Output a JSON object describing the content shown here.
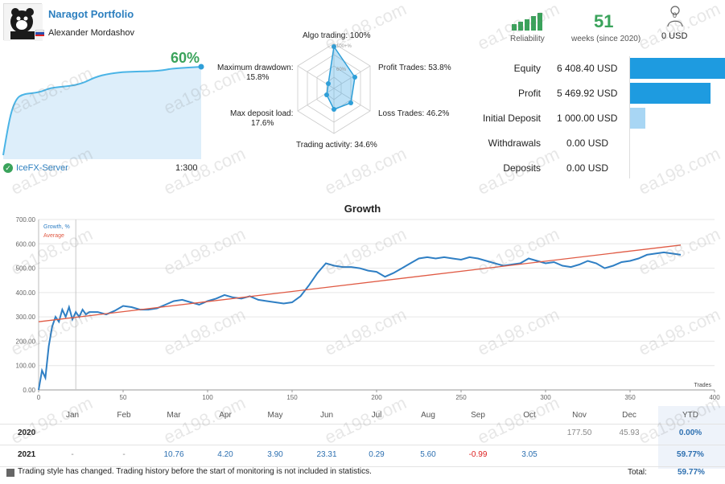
{
  "header": {
    "title": "Naragot Portfolio",
    "owner": "Alexander Mordashov",
    "flag": "russia-flag-icon"
  },
  "account": {
    "percent": "60%",
    "server": "IceFX-Server",
    "leverage": "1:300"
  },
  "radar": {
    "algo": "Algo trading: 100%",
    "profit_trades": "Profit Trades: 53.8%",
    "loss_trades": "Loss Trades: 46.2%",
    "trading_activity": "Trading activity: 34.6%",
    "max_deposit_load": "Max deposit load:",
    "max_deposit_load_val": "17.6%",
    "max_drawdown": "Maximum drawdown:",
    "max_drawdown_val": "15.8%",
    "axis_100": "100+%",
    "axis_60": "60%"
  },
  "badges": {
    "reliability_label": "Reliability",
    "weeks_value": "51",
    "weeks_label": "weeks (since 2020)",
    "subscribers_count": "0",
    "subscribers_value": "0 USD"
  },
  "stats": [
    {
      "label": "Equity",
      "value": "6 408.40 USD",
      "fraction": 1.0,
      "color": "#1e9be0"
    },
    {
      "label": "Profit",
      "value": "5 469.92 USD",
      "fraction": 0.85,
      "color": "#1e9be0"
    },
    {
      "label": "Initial Deposit",
      "value": "1 000.00 USD",
      "fraction": 0.16,
      "color": "#a8d6f4"
    },
    {
      "label": "Withdrawals",
      "value": "0.00 USD",
      "fraction": 0.0,
      "color": "#1e9be0"
    },
    {
      "label": "Deposits",
      "value": "0.00 USD",
      "fraction": 0.0,
      "color": "#1e9be0"
    }
  ],
  "chart_data": {
    "type": "line",
    "title": "Growth",
    "xlabel": "Trades",
    "ylim": [
      0,
      700
    ],
    "xlim": [
      0,
      400
    ],
    "yticks": [
      "0.00",
      "100.00",
      "200.00",
      "300.00",
      "400.00",
      "500.00",
      "600.00",
      "700.00"
    ],
    "xticks": [
      "0",
      "50",
      "100",
      "150",
      "200",
      "250",
      "300",
      "350",
      "400"
    ],
    "legend": [
      "Growth, %",
      "Average"
    ],
    "series": [
      {
        "name": "Growth, %",
        "x": [
          0,
          2,
          4,
          6,
          8,
          10,
          12,
          14,
          16,
          18,
          20,
          22,
          24,
          26,
          28,
          30,
          35,
          40,
          45,
          50,
          55,
          60,
          65,
          70,
          75,
          80,
          85,
          90,
          95,
          100,
          105,
          110,
          115,
          120,
          125,
          130,
          135,
          140,
          145,
          150,
          155,
          160,
          165,
          170,
          175,
          180,
          185,
          190,
          195,
          200,
          205,
          210,
          215,
          220,
          225,
          230,
          235,
          240,
          245,
          250,
          255,
          260,
          265,
          270,
          275,
          280,
          285,
          290,
          295,
          300,
          305,
          310,
          315,
          320,
          325,
          330,
          335,
          340,
          345,
          350,
          355,
          360,
          365,
          370,
          375,
          380
        ],
        "y": [
          0,
          80,
          50,
          180,
          260,
          300,
          280,
          330,
          300,
          340,
          290,
          320,
          300,
          330,
          310,
          320,
          320,
          310,
          325,
          345,
          340,
          330,
          330,
          335,
          350,
          365,
          370,
          360,
          350,
          365,
          375,
          390,
          380,
          375,
          385,
          370,
          365,
          360,
          355,
          360,
          385,
          430,
          480,
          520,
          510,
          505,
          505,
          500,
          490,
          485,
          465,
          480,
          500,
          520,
          540,
          545,
          540,
          545,
          540,
          535,
          545,
          540,
          530,
          520,
          510,
          515,
          520,
          540,
          530,
          520,
          525,
          510,
          505,
          515,
          530,
          520,
          500,
          510,
          525,
          530,
          540,
          555,
          560,
          565,
          560,
          555
        ],
        "color": "#2f7fc4"
      },
      {
        "name": "Average",
        "x": [
          0,
          380
        ],
        "y": [
          280,
          595
        ],
        "color": "#e05a44"
      }
    ]
  },
  "monthly": {
    "months": [
      "Jan",
      "Feb",
      "Mar",
      "Apr",
      "May",
      "Jun",
      "Jul",
      "Aug",
      "Sep",
      "Oct",
      "Nov",
      "Dec",
      "YTD"
    ],
    "rows": [
      {
        "year": "2020",
        "values": [
          "",
          "",
          "",
          "",
          "",
          "",
          "",
          "",
          "",
          "",
          "177.50",
          "45.93",
          "0.00%"
        ]
      },
      {
        "year": "2021",
        "values": [
          "-",
          "-",
          "10.76",
          "4.20",
          "3.90",
          "23.31",
          "0.29",
          "5.60",
          "-0.99",
          "3.05",
          "",
          "",
          "59.77%"
        ]
      }
    ],
    "total_label": "Total:",
    "total_value": "59.77%"
  },
  "footer": {
    "note": "Trading style has changed. Trading history before the start of monitoring is not included in statistics."
  },
  "watermark": "ea198.com"
}
